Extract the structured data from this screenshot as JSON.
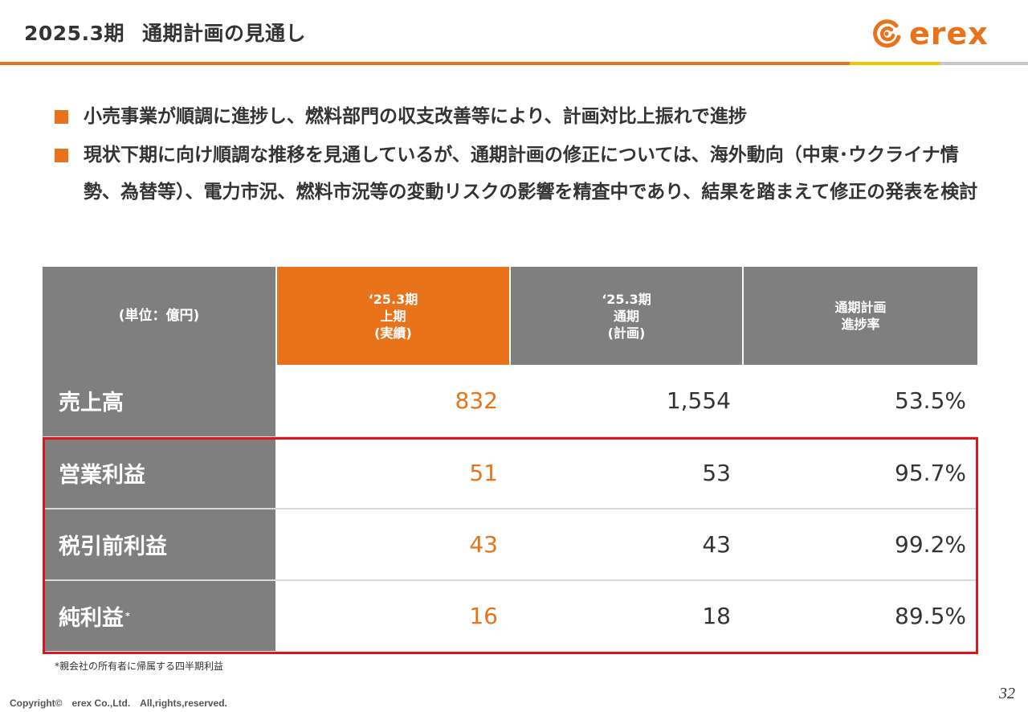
{
  "header": {
    "period": "2025.3期",
    "title": "通期計画の見通し",
    "logo_text": "erex",
    "accent_color": "#E8731A"
  },
  "bullets": [
    "小売事業が順調に進捗し、燃料部門の収支改善等により、計画対比上振れで進捗",
    "現状下期に向け順調な推移を見通しているが、通期計画の修正については、海外動向（中東･ウクライナ情勢、為替等）、電力市況、燃料市況等の変動リスクの影響を精査中であり、結果を踏まえて修正の発表を検討"
  ],
  "table": {
    "headers": [
      "(単位：億円)",
      "‘25.3期\n上期\n(実績)",
      "‘25.3期\n通期\n(計画)",
      "通期計画\n進捗率"
    ],
    "rows": [
      {
        "label": "売上高",
        "note": "",
        "actual": "832",
        "plan": "1,554",
        "rate": "53.5%"
      },
      {
        "label": "営業利益",
        "note": "",
        "actual": "51",
        "plan": "53",
        "rate": "95.7%"
      },
      {
        "label": "税引前利益",
        "note": "",
        "actual": "43",
        "plan": "43",
        "rate": "99.2%"
      },
      {
        "label": "純利益",
        "note": "*",
        "actual": "16",
        "plan": "18",
        "rate": "89.5%"
      }
    ]
  },
  "footnote": "*親会社の所有者に帰属する四半期利益",
  "footer": {
    "copyright": "Copyright©　erex Co.,Ltd.　All,rights,reserved.",
    "page_number": "32"
  }
}
